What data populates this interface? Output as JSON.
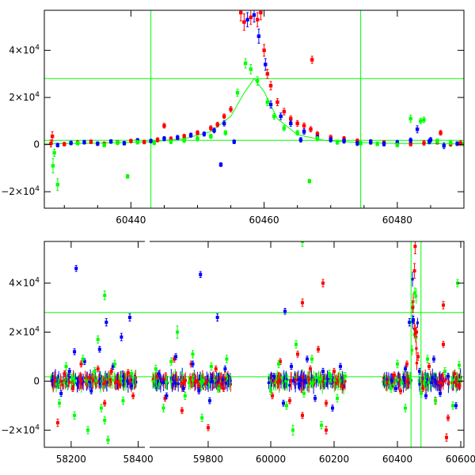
{
  "chart_data": [
    {
      "type": "scatter",
      "xlim": [
        60427,
        60490
      ],
      "ylim": [
        -27000,
        57000
      ],
      "xticks": [
        60440,
        60460,
        60480
      ],
      "xtick_labels": [
        "60440",
        "60460",
        "60480"
      ],
      "yticks": [
        -20000,
        0,
        20000,
        40000
      ],
      "ytick_labels": [
        {
          "prefix": "−2×10",
          "exp": "4"
        },
        {
          "prefix": "0",
          "exp": ""
        },
        {
          "prefix": "2×10",
          "exp": "4"
        },
        {
          "prefix": "4×10",
          "exp": "4"
        }
      ],
      "colors": {
        "red": "#ff0000",
        "blue": "#0000ff",
        "green": "#00ff00"
      },
      "vlines": [
        60443,
        60474.5
      ],
      "hlines": [
        28000,
        1800
      ],
      "model_curve": {
        "x": [
          60427,
          60435,
          60443,
          60448,
          60452,
          60455,
          60457,
          60458.5,
          60460,
          60462,
          60465,
          60469,
          60474,
          60480,
          60490
        ],
        "y": [
          300,
          600,
          1200,
          2500,
          5500,
          12000,
          22000,
          28000,
          22500,
          11000,
          4200,
          1800,
          900,
          500,
          300
        ]
      },
      "series": [
        {
          "color": "red",
          "x": [
            60428,
            60430,
            60432,
            60434,
            60436,
            60438,
            60440,
            60442,
            60444,
            60446,
            60448,
            60450,
            60452,
            60453,
            60454,
            60455,
            60456.5,
            60457,
            60458,
            60459,
            60459.5,
            60460,
            60460.5,
            60461,
            60462,
            60463,
            60464,
            60465,
            60466,
            60467,
            60468,
            60470,
            60472,
            60474,
            60476,
            60478,
            60480,
            60482,
            60484,
            60486,
            60488,
            60489.5,
            60445,
            60467.2,
            60486.5,
            60428.2
          ],
          "y": [
            500,
            200,
            800,
            1200,
            300,
            900,
            1500,
            1100,
            2000,
            2400,
            3500,
            5000,
            7000,
            8500,
            12000,
            15000,
            56000,
            52000,
            54000,
            53000,
            56000,
            40000,
            30000,
            25000,
            18000,
            14000,
            11000,
            9000,
            8000,
            6500,
            4500,
            3000,
            2500,
            1500,
            1000,
            800,
            500,
            300,
            700,
            1100,
            200,
            600,
            8000,
            36000,
            5000,
            3500
          ],
          "err": [
            1500,
            800,
            900,
            800,
            800,
            900,
            800,
            800,
            900,
            900,
            900,
            900,
            1000,
            1000,
            1000,
            1100,
            3500,
            3500,
            3000,
            3000,
            3000,
            2500,
            2000,
            1800,
            1500,
            1400,
            1200,
            1200,
            1200,
            1100,
            1000,
            1000,
            900,
            900,
            900,
            900,
            900,
            900,
            1000,
            900,
            900,
            1000,
            1000,
            1500,
            1000,
            2000
          ]
        },
        {
          "color": "blue",
          "x": [
            60429,
            60431,
            60433,
            60435,
            60437,
            60439,
            60441,
            60443,
            60445,
            60447,
            60449,
            60451,
            60452.5,
            60454,
            60455.5,
            60457.5,
            60458.5,
            60459.2,
            60460.2,
            60461,
            60462.5,
            60464,
            60466,
            60468,
            60470,
            60472,
            60474,
            60476,
            60478,
            60480,
            60482,
            60483,
            60485,
            60487,
            60489,
            60453.5,
            60465.5,
            60484.8
          ],
          "y": [
            -200,
            700,
            1000,
            400,
            1300,
            600,
            1800,
            1500,
            2500,
            3000,
            4000,
            4500,
            6000,
            9000,
            1200,
            53000,
            55000,
            46000,
            34000,
            17000,
            12000,
            9000,
            5500,
            3000,
            2000,
            1500,
            500,
            1200,
            300,
            900,
            1800,
            6500,
            2000,
            -500,
            400,
            -8500,
            2000,
            1300
          ],
          "err": [
            800,
            800,
            800,
            800,
            800,
            800,
            800,
            800,
            900,
            900,
            900,
            900,
            1000,
            1100,
            800,
            3000,
            3000,
            3000,
            2500,
            1500,
            1400,
            1200,
            1100,
            1000,
            900,
            900,
            900,
            900,
            900,
            900,
            1000,
            1500,
            1000,
            1200,
            800,
            800,
            1000,
            1000
          ]
        },
        {
          "color": "green",
          "x": [
            60428.3,
            60429,
            60432,
            60436,
            60439.5,
            60441,
            60443.5,
            60446,
            60448,
            60450,
            60452,
            60454.2,
            60456,
            60457.2,
            60458,
            60459,
            60460.5,
            60461.5,
            60463,
            60465,
            60468,
            60471,
            60474.5,
            60477,
            60480,
            60482,
            60483.5,
            60484,
            60486,
            60488,
            60490,
            60428.5,
            60438,
            60466.8
          ],
          "y": [
            -9000,
            -17000,
            600,
            -200,
            -13500,
            1000,
            700,
            1200,
            1800,
            2500,
            3500,
            5000,
            22000,
            34500,
            32000,
            27000,
            18000,
            12000,
            7000,
            5000,
            2500,
            1000,
            600,
            300,
            -200,
            11000,
            10000,
            10500,
            1500,
            800,
            200,
            -3500,
            800,
            -15500
          ],
          "err": [
            3000,
            2500,
            800,
            800,
            800,
            800,
            800,
            800,
            900,
            900,
            900,
            1000,
            1500,
            2000,
            2000,
            1800,
            1500,
            1200,
            1100,
            1000,
            900,
            900,
            800,
            800,
            800,
            1500,
            1200,
            1200,
            900,
            800,
            800,
            1500,
            800,
            800
          ]
        }
      ]
    },
    {
      "type": "scatter",
      "x_segments": [
        {
          "xlim": [
            58120,
            58420
          ],
          "xticks": [
            58200,
            58400
          ],
          "xtick_labels": [
            "58200",
            "58400"
          ]
        },
        {
          "xlim": [
            59610,
            59890
          ],
          "xticks": [
            59800
          ],
          "xtick_labels": [
            "59800"
          ]
        },
        {
          "xlim": [
            59890,
            60610
          ],
          "xticks": [
            60000,
            60200,
            60400,
            60600
          ],
          "xtick_labels": [
            "60000",
            "60200",
            "60400",
            "60600"
          ]
        }
      ],
      "ylim": [
        -27000,
        57000
      ],
      "yticks": [
        -20000,
        0,
        20000,
        40000
      ],
      "ytick_labels": [
        {
          "prefix": "−2×10",
          "exp": "4"
        },
        {
          "prefix": "0",
          "exp": ""
        },
        {
          "prefix": "2×10",
          "exp": "4"
        },
        {
          "prefix": "4×10",
          "exp": "4"
        }
      ],
      "colors": {
        "red": "#ff0000",
        "blue": "#0000ff",
        "green": "#00ff00"
      },
      "vlines": [
        60443,
        60474.5
      ],
      "hlines": [
        28000,
        1800
      ],
      "observing_seasons": [
        {
          "range": [
            58140,
            58395
          ],
          "x_left": 58160,
          "x_right": 58390
        },
        {
          "range": [
            59620,
            59880
          ],
          "x_left": 59630,
          "x_right": 59870
        },
        {
          "range": [
            59990,
            60240
          ],
          "x_left": 60000,
          "x_right": 60230
        },
        {
          "range": [
            60350,
            60600
          ],
          "x_left": 60360,
          "x_right": 60590
        }
      ],
      "series": [
        {
          "color": "red",
          "x": [
            58160,
            58180,
            58205,
            58230,
            58255,
            58280,
            58300,
            58320,
            58345,
            58370,
            58385,
            59635,
            59660,
            59690,
            59715,
            59745,
            59770,
            59800,
            59825,
            59850,
            60005,
            60030,
            60060,
            60085,
            60100,
            60125,
            60150,
            60175,
            60200,
            60225,
            60390,
            60410,
            60430,
            60448,
            60454,
            60456,
            60460,
            60465,
            60480,
            60500,
            60520,
            60545,
            60560,
            60580,
            60595,
            60100,
            60165,
            60175,
            60545,
            60555
          ],
          "y": [
            -17000,
            3000,
            -3000,
            7000,
            1500,
            5000,
            -9000,
            4000,
            -1500,
            3500,
            -6000,
            2000,
            -7000,
            9000,
            -12000,
            7000,
            -2000,
            -19000,
            5000,
            -3000,
            -6000,
            8000,
            -8000,
            11000,
            -14000,
            5000,
            13000,
            -9000,
            4000,
            -2000,
            2500,
            -4000,
            7000,
            30000,
            45000,
            55000,
            20000,
            10000,
            -3000,
            6000,
            -8000,
            15000,
            -15000,
            3000,
            -2000,
            32000,
            40000,
            -20000,
            31000,
            -23000
          ],
          "err": [
            1500,
            1200,
            1200,
            1200,
            1200,
            1200,
            1200,
            1200,
            1200,
            1200,
            1200,
            1200,
            1200,
            1200,
            1200,
            1200,
            1200,
            1200,
            1200,
            1200,
            1200,
            1200,
            1200,
            1200,
            1200,
            1200,
            1200,
            1200,
            1200,
            1200,
            1200,
            1200,
            1200,
            2000,
            3000,
            3000,
            2000,
            1500,
            1200,
            1200,
            1200,
            1200,
            1200,
            1200,
            1200,
            1500,
            1500,
            1500,
            1500,
            1500
          ]
        },
        {
          "color": "blue",
          "x": [
            58170,
            58195,
            58215,
            58240,
            58260,
            58285,
            58305,
            58325,
            58350,
            58375,
            58380,
            58210,
            59640,
            59665,
            59695,
            59720,
            59750,
            59775,
            59805,
            59830,
            59855,
            59770,
            60010,
            60040,
            60065,
            60090,
            60115,
            60140,
            60165,
            60195,
            60220,
            60395,
            60420,
            60438,
            60450,
            60470,
            60490,
            60515,
            60535,
            60560,
            60585,
            60045,
            60425
          ],
          "y": [
            -5000,
            4000,
            46000,
            8000,
            -4000,
            13000,
            24000,
            6000,
            18000,
            26000,
            -2000,
            12000,
            3000,
            -6000,
            10000,
            -3000,
            7000,
            43500,
            -8000,
            26000,
            5000,
            -4000,
            2000,
            -9000,
            6000,
            -2000,
            9000,
            -7000,
            4000,
            -11000,
            6000,
            -3000,
            1500,
            24000,
            25000,
            4000,
            -6000,
            9000,
            -5000,
            2000,
            -10000,
            28500,
            5000
          ],
          "err": [
            1200,
            1200,
            1200,
            1200,
            1200,
            1200,
            1500,
            1200,
            1500,
            1500,
            1200,
            1200,
            1200,
            1200,
            1200,
            1200,
            1200,
            1200,
            1200,
            1500,
            1200,
            1200,
            1200,
            1200,
            1200,
            1200,
            1200,
            1200,
            1200,
            1200,
            1200,
            1200,
            1200,
            1500,
            1500,
            1200,
            1200,
            1200,
            1200,
            1200,
            1200,
            1200,
            1200
          ]
        },
        {
          "color": "green",
          "x": [
            58165,
            58185,
            58210,
            58235,
            58250,
            58270,
            58290,
            58300,
            58310,
            58330,
            58355,
            58380,
            58300,
            58280,
            59630,
            59655,
            59680,
            59700,
            59725,
            59750,
            59780,
            59810,
            59835,
            59860,
            60000,
            60025,
            60050,
            60080,
            60105,
            60130,
            60160,
            60185,
            60210,
            60235,
            60100,
            60070,
            60380,
            60400,
            60425,
            60440,
            60455,
            60475,
            60495,
            60520,
            60550,
            60575,
            60590,
            60595
          ],
          "y": [
            -9000,
            6000,
            -14000,
            9000,
            -20000,
            4000,
            -11000,
            35000,
            -24000,
            7000,
            -8000,
            3000,
            -16000,
            17000,
            5000,
            -11000,
            8000,
            20000,
            -6000,
            11000,
            -15000,
            6000,
            -3000,
            9000,
            -4000,
            7000,
            -10000,
            15000,
            -5000,
            9000,
            -18000,
            3000,
            -7000,
            2000,
            57000,
            -20000,
            -3000,
            7000,
            -11000,
            2000,
            36000,
            -5000,
            9000,
            -8000,
            4000,
            -10000,
            40000,
            6500
          ],
          "err": [
            1500,
            1500,
            1500,
            1500,
            1500,
            1500,
            1500,
            1800,
            1500,
            1500,
            1500,
            1500,
            1500,
            1500,
            1500,
            1500,
            1500,
            2500,
            1500,
            1500,
            1500,
            1500,
            1500,
            1500,
            1500,
            1500,
            1500,
            1500,
            1500,
            1500,
            1500,
            1500,
            1500,
            1500,
            2000,
            2000,
            1500,
            1500,
            1500,
            1500,
            2000,
            1500,
            1500,
            1500,
            1500,
            1500,
            1500,
            1500
          ]
        }
      ]
    }
  ]
}
